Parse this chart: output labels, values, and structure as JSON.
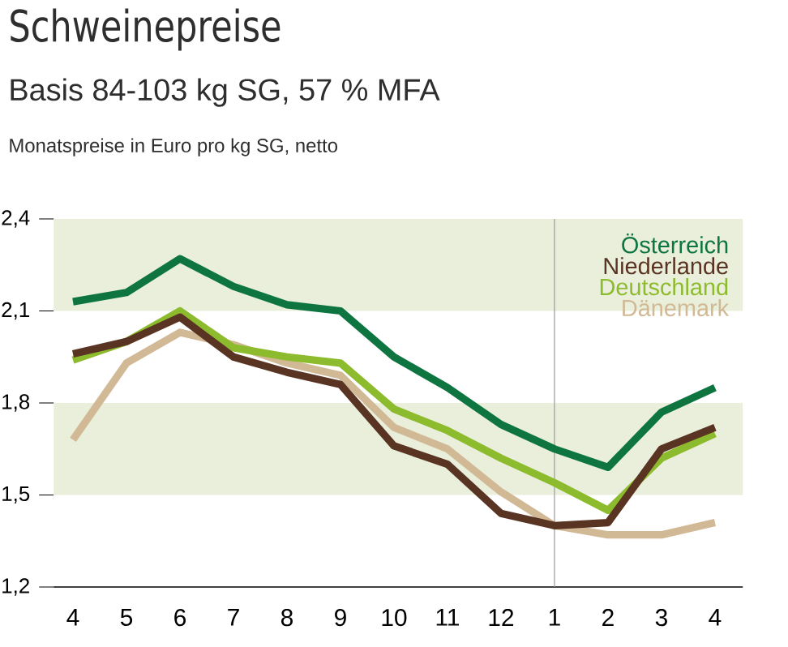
{
  "chart_data": {
    "type": "line",
    "title": "Schweinepreise",
    "subtitle": "Basis 84-103 kg SG, 57 % MFA",
    "annotations": [
      "Monatspreise in Euro pro kg SG, netto"
    ],
    "categories": [
      "4",
      "5",
      "6",
      "7",
      "8",
      "9",
      "10",
      "11",
      "12",
      "1",
      "2",
      "3",
      "4"
    ],
    "series": [
      {
        "name": "Österreich",
        "color": "#0e7540",
        "values": [
          2.13,
          2.16,
          2.27,
          2.18,
          2.12,
          2.1,
          1.95,
          1.85,
          1.73,
          1.65,
          1.59,
          1.77,
          1.85
        ]
      },
      {
        "name": "Niederlande",
        "color": "#5a3423",
        "values": [
          1.96,
          2.0,
          2.08,
          1.95,
          1.9,
          1.86,
          1.66,
          1.6,
          1.44,
          1.4,
          1.41,
          1.65,
          1.72
        ]
      },
      {
        "name": "Deutschland",
        "color": "#8dbb2e",
        "values": [
          1.94,
          2.0,
          2.1,
          1.98,
          1.95,
          1.93,
          1.78,
          1.71,
          1.62,
          1.54,
          1.45,
          1.62,
          1.7
        ]
      },
      {
        "name": "Dänemark",
        "color": "#d2b996",
        "values": [
          1.68,
          1.93,
          2.03,
          1.99,
          1.93,
          1.89,
          1.72,
          1.65,
          1.51,
          1.4,
          1.37,
          1.37,
          1.41
        ]
      }
    ],
    "ylim": [
      1.2,
      2.4
    ],
    "yticks": [
      {
        "value": 1.2,
        "label": "1,2"
      },
      {
        "value": 1.5,
        "label": "1,5"
      },
      {
        "value": 1.8,
        "label": "1,8"
      },
      {
        "value": 2.1,
        "label": "2,1"
      },
      {
        "value": 2.4,
        "label": "2,4"
      }
    ],
    "bands": [
      {
        "axis": "y",
        "from": 1.5,
        "to": 1.8,
        "color": "#e9efda"
      },
      {
        "axis": "y",
        "from": 2.1,
        "to": 2.4,
        "color": "#e9efda"
      }
    ],
    "ref_lines": [
      {
        "axis": "x",
        "value": "1",
        "color": "#9a9a9a"
      }
    ],
    "legend": "top right",
    "grid": false,
    "marker": "none",
    "line_style": "solid"
  }
}
